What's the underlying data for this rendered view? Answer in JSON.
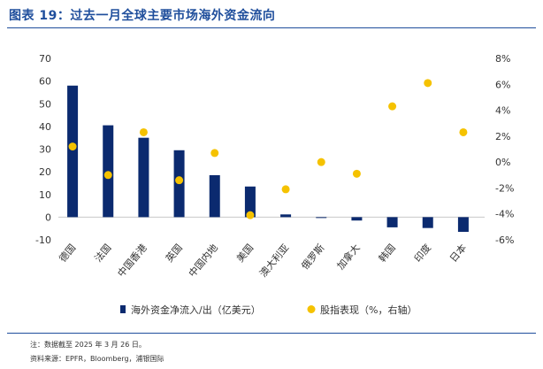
{
  "header": {
    "title": "图表 19：过去一月全球主要市场海外资金流向"
  },
  "footer": {
    "note": "注：数据截至 2025 年 3 月 26 日。",
    "source": "资料来源：EPFR，Bloomberg，浦银国际"
  },
  "colors": {
    "accent": "#1f4e9c",
    "bar": "#0b2a6f",
    "dot": "#f5c200",
    "axis": "#c8c8c8"
  },
  "chart_data": {
    "type": "bar",
    "categories": [
      "德国",
      "法国",
      "中国香港",
      "英国",
      "中国内地",
      "美国",
      "澳大利亚",
      "俄罗斯",
      "加拿大",
      "韩国",
      "印度",
      "日本"
    ],
    "series": [
      {
        "name": "海外资金净流入/出（亿美元）",
        "type": "bar",
        "axis": "left",
        "values": [
          58,
          40.5,
          35,
          29.5,
          18.5,
          13.5,
          1.2,
          -0.3,
          -1.5,
          -4.5,
          -4.8,
          -6.5
        ]
      },
      {
        "name": "股指表现（%，右轴）",
        "type": "scatter",
        "axis": "right",
        "values": [
          1.2,
          -1.0,
          2.3,
          -1.4,
          0.7,
          -4.1,
          -2.1,
          0.0,
          -0.9,
          4.3,
          6.1,
          2.3
        ]
      }
    ],
    "y_left": {
      "min": -10,
      "max": 70,
      "ticks": [
        "-10",
        "0",
        "10",
        "20",
        "30",
        "40",
        "50",
        "60",
        "70"
      ]
    },
    "y_right": {
      "min": -6,
      "max": 8,
      "ticks": [
        "-6%",
        "-4%",
        "-2%",
        "0%",
        "2%",
        "4%",
        "6%",
        "8%"
      ]
    },
    "grid": false,
    "legend_position": "bottom"
  }
}
